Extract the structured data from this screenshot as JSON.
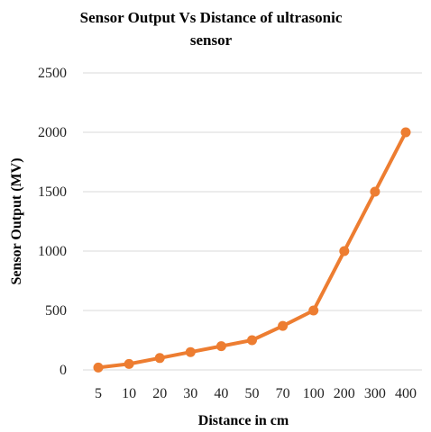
{
  "chart_data": {
    "type": "line",
    "title": "Sensor Output Vs Distance of ultrasonic sensor",
    "title_lines": [
      "Sensor Output Vs Distance of ultrasonic",
      "sensor"
    ],
    "xlabel": "Distance in cm",
    "ylabel": "Sensor Output (MV)",
    "categories": [
      "5",
      "10",
      "20",
      "30",
      "40",
      "50",
      "70",
      "100",
      "200",
      "300",
      "400"
    ],
    "series": [
      {
        "values": [
          20,
          50,
          100,
          150,
          200,
          250,
          370,
          500,
          1000,
          1500,
          2000
        ],
        "color": "#ed7d31"
      }
    ],
    "ylim": [
      0,
      2500
    ],
    "yticks": [
      0,
      500,
      1000,
      1500,
      2000,
      2500
    ],
    "grid": true,
    "legend": "none"
  }
}
